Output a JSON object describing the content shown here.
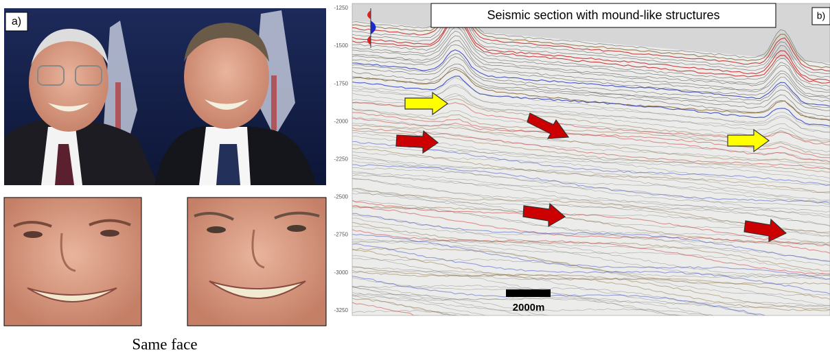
{
  "panel_a": {
    "label": "a)",
    "caption": "Same face"
  },
  "panel_b": {
    "label": "b)",
    "title": "Seismic section with mound-like structures",
    "axis_ticks": [
      "-1250",
      "-1500",
      "-1750",
      "-2000",
      "-2250",
      "-2500",
      "-2750",
      "-3000",
      "-3250"
    ],
    "scale_bar": "2000m"
  }
}
